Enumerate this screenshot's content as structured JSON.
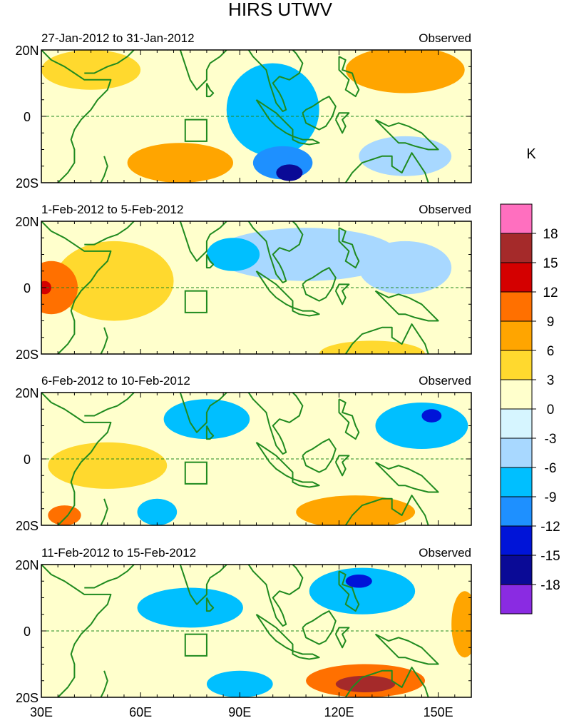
{
  "chart_data": {
    "type": "heatmap",
    "title": "HIRS UTWV",
    "source_label": "Observed",
    "x_ticks": [
      "30E",
      "60E",
      "90E",
      "120E",
      "150E"
    ],
    "x_tick_values": [
      30,
      60,
      90,
      120,
      150
    ],
    "x_range": [
      30,
      160
    ],
    "y_ticks": [
      "20N",
      "0",
      "20S"
    ],
    "y_tick_values": [
      20,
      0,
      -20
    ],
    "y_range": [
      -20,
      20
    ],
    "colorbar": {
      "unit": "K",
      "levels": [
        "18",
        "15",
        "12",
        "9",
        "6",
        "3",
        "0",
        "-3",
        "-6",
        "-9",
        "-12",
        "-15",
        "-18"
      ],
      "colors": [
        "#ff6fbf",
        "#a52a2a",
        "#d40000",
        "#ff7000",
        "#ffa500",
        "#ffd92e",
        "#ffffcc",
        "#d6f5ff",
        "#a8d8ff",
        "#00bfff",
        "#1e90ff",
        "#0014d8",
        "#0a0a96",
        "#8a2be2"
      ]
    },
    "panels": [
      {
        "date_range": "27-Jan-2012 to 31-Jan-2012",
        "anomalies": [
          {
            "lon": 100,
            "lat": 2,
            "value": -7,
            "rlon": 14,
            "rlat": 14
          },
          {
            "lon": 103,
            "lat": -14,
            "value": -12,
            "rlon": 9,
            "rlat": 5
          },
          {
            "lon": 105,
            "lat": -17,
            "value": -18,
            "rlon": 4,
            "rlat": 2.5
          },
          {
            "lon": 72,
            "lat": -14,
            "value": 8,
            "rlon": 16,
            "rlat": 6
          },
          {
            "lon": 140,
            "lat": 14,
            "value": 8,
            "rlon": 18,
            "rlat": 7
          },
          {
            "lon": 45,
            "lat": 14,
            "value": 4,
            "rlon": 15,
            "rlat": 6
          },
          {
            "lon": 140,
            "lat": -12,
            "value": -5,
            "rlon": 14,
            "rlat": 6
          }
        ]
      },
      {
        "date_range": "1-Feb-2012 to 5-Feb-2012",
        "anomalies": [
          {
            "lon": 33,
            "lat": 0,
            "value": 9,
            "rlon": 8,
            "rlat": 8
          },
          {
            "lon": 31,
            "lat": 0,
            "value": 13,
            "rlon": 2,
            "rlat": 2
          },
          {
            "lon": 52,
            "lat": 2,
            "value": 4,
            "rlon": 18,
            "rlat": 12
          },
          {
            "lon": 110,
            "lat": 10,
            "value": -6,
            "rlon": 28,
            "rlat": 8
          },
          {
            "lon": 88,
            "lat": 10,
            "value": -8,
            "rlon": 8,
            "rlat": 5
          },
          {
            "lon": 140,
            "lat": 6,
            "value": -5,
            "rlon": 14,
            "rlat": 8
          },
          {
            "lon": 130,
            "lat": -20,
            "value": 5,
            "rlon": 16,
            "rlat": 4
          }
        ]
      },
      {
        "date_range": "6-Feb-2012 to 10-Feb-2012",
        "anomalies": [
          {
            "lon": 80,
            "lat": 12,
            "value": -9,
            "rlon": 13,
            "rlat": 6
          },
          {
            "lon": 145,
            "lat": 10,
            "value": -7,
            "rlon": 14,
            "rlat": 7
          },
          {
            "lon": 148,
            "lat": 13,
            "value": -13,
            "rlon": 3,
            "rlat": 2
          },
          {
            "lon": 50,
            "lat": -2,
            "value": 4,
            "rlon": 18,
            "rlat": 7
          },
          {
            "lon": 37,
            "lat": -17,
            "value": 10,
            "rlon": 5,
            "rlat": 3
          },
          {
            "lon": 125,
            "lat": -16,
            "value": 7,
            "rlon": 18,
            "rlat": 5
          },
          {
            "lon": 65,
            "lat": -16,
            "value": -7,
            "rlon": 6,
            "rlat": 4
          }
        ]
      },
      {
        "date_range": "11-Feb-2012 to 15-Feb-2012",
        "anomalies": [
          {
            "lon": 75,
            "lat": 7,
            "value": -8,
            "rlon": 16,
            "rlat": 6
          },
          {
            "lon": 127,
            "lat": 12,
            "value": -9,
            "rlon": 16,
            "rlat": 7
          },
          {
            "lon": 126,
            "lat": 15,
            "value": -14,
            "rlon": 4,
            "rlat": 2
          },
          {
            "lon": 128,
            "lat": -15,
            "value": 11,
            "rlon": 18,
            "rlat": 5
          },
          {
            "lon": 128,
            "lat": -16,
            "value": 17,
            "rlon": 9,
            "rlat": 2.5
          },
          {
            "lon": 90,
            "lat": -16,
            "value": -7,
            "rlon": 10,
            "rlat": 4
          },
          {
            "lon": 158,
            "lat": 2,
            "value": 6,
            "rlon": 4,
            "rlat": 10
          }
        ]
      }
    ]
  }
}
